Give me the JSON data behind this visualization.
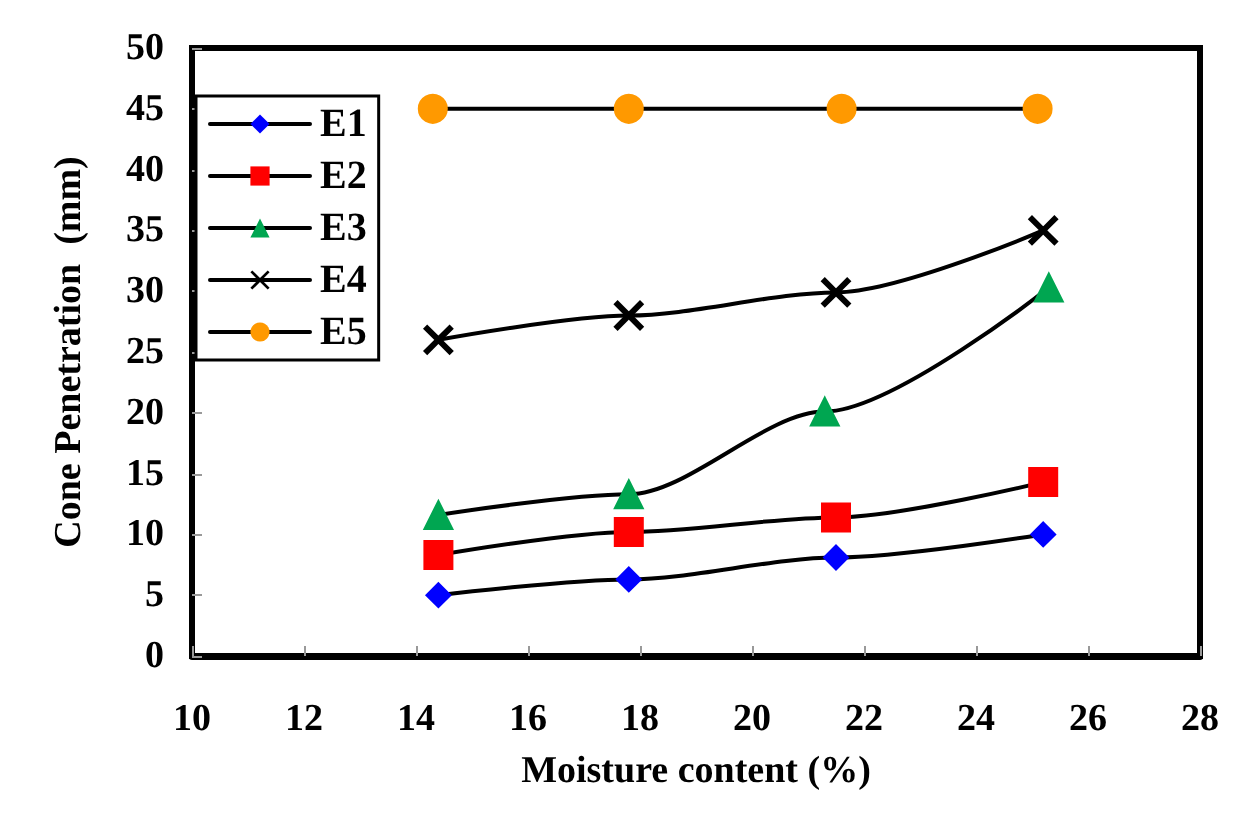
{
  "chart_data": {
    "type": "line",
    "xlabel": "Moisture content (%)",
    "ylabel": "Cone Penetration  (mm)",
    "xlim": [
      10,
      28
    ],
    "xticks": [
      10,
      12,
      14,
      16,
      18,
      20,
      22,
      24,
      26,
      28
    ],
    "ylim": [
      0,
      50
    ],
    "yticks": [
      0,
      5,
      10,
      15,
      20,
      25,
      30,
      35,
      40,
      45,
      50
    ],
    "grid": false,
    "legend": "top left",
    "line_style": "solid",
    "series": [
      {
        "name": "E1",
        "color": "#0000ff",
        "marker": "diamond",
        "x": [
          14.4,
          17.8,
          21.5,
          25.2
        ],
        "values": [
          5,
          6.3,
          8.1,
          10
        ]
      },
      {
        "name": "E2",
        "color": "#ff0000",
        "marker": "square",
        "x": [
          14.4,
          17.8,
          21.5,
          25.2
        ],
        "values": [
          8.3,
          10.2,
          11.4,
          14.3
        ]
      },
      {
        "name": "E3",
        "color": "#00a651",
        "marker": "triangle",
        "x": [
          14.4,
          17.8,
          21.3,
          25.3
        ],
        "values": [
          11.6,
          13.3,
          20.1,
          30.3
        ]
      },
      {
        "name": "E4",
        "color": "#000000",
        "marker": "cross",
        "x": [
          14.4,
          17.8,
          21.5,
          25.2
        ],
        "values": [
          26,
          28,
          29.9,
          35
        ]
      },
      {
        "name": "E5",
        "color": "#ff9900",
        "marker": "circle",
        "x": [
          14.3,
          17.8,
          21.6,
          25.1
        ],
        "values": [
          45,
          45,
          45,
          45
        ]
      }
    ]
  }
}
